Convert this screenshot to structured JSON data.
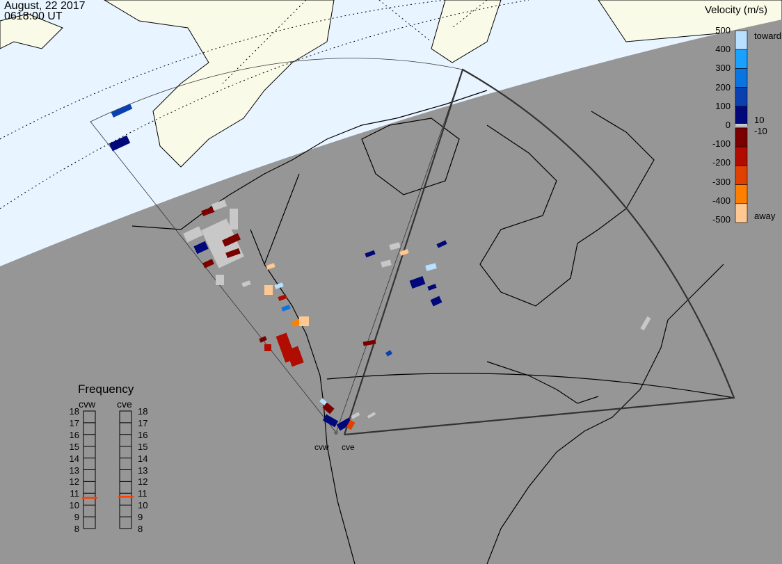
{
  "header": {
    "date": "August, 22 2017",
    "time": "0618:00 UT"
  },
  "velocity_scale": {
    "title": "Velocity (m/s)",
    "ticks": [
      "500",
      "400",
      "300",
      "200",
      "100",
      "0",
      "-100",
      "-200",
      "-300",
      "-400",
      "-500"
    ],
    "side_labels": {
      "toward": "toward",
      "plus10": "10",
      "minus10": "-10",
      "away": "away"
    },
    "colors": [
      "#b8e0ff",
      "#1aa0ff",
      "#0a74e0",
      "#0a40b0",
      "#00087a",
      "#c8c8c8",
      "#7a0000",
      "#b00c00",
      "#e04000",
      "#ff8000",
      "#ffc890"
    ]
  },
  "frequency": {
    "title": "Frequency",
    "ticks": [
      "18",
      "17",
      "16",
      "15",
      "14",
      "13",
      "12",
      "11",
      "10",
      "9",
      "8"
    ],
    "range_mhz": [
      8,
      18
    ],
    "radars": [
      {
        "name": "cvw",
        "value_mhz": 10.6
      },
      {
        "name": "cve",
        "value_mhz": 10.7
      }
    ],
    "marker_color": "#ff4000"
  },
  "sites": {
    "west": "cvw",
    "east": "cve"
  },
  "colors": {
    "sky": "#e8f4ff",
    "sunlit_land": "#fafae8",
    "night": "#969696",
    "ground_scatter": "#c8c8c8"
  }
}
